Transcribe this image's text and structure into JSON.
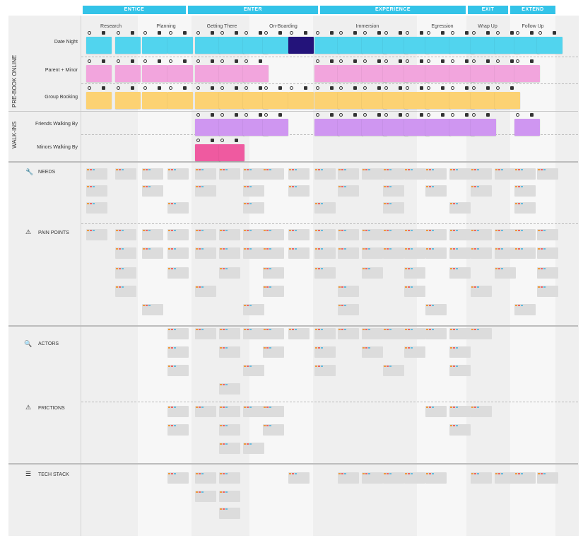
{
  "phases": [
    {
      "label": "ENTICE"
    },
    {
      "label": "ENTER"
    },
    {
      "label": "EXPERIENCE"
    },
    {
      "label": "EXIT"
    },
    {
      "label": "EXTEND"
    }
  ],
  "stages": [
    "Research",
    "Planning",
    "Getting There",
    "On-Boarding",
    "Immersion",
    "Egression",
    "Wrap Up",
    "Follow Up"
  ],
  "groups": {
    "pre_book": "PRE-BOOK ONLINE",
    "walk_ins": "WALK-INS"
  },
  "personas": [
    "Date Night",
    "Parent + Minor",
    "Group Booking",
    "Friends Walking By",
    "Minors Walking By"
  ],
  "sections": [
    {
      "label": "NEEDS",
      "icon": "wrench-icon",
      "glyph": "🔧"
    },
    {
      "label": "PAIN POINTS",
      "icon": "warning-icon",
      "glyph": "⚠"
    },
    {
      "label": "ACTORS",
      "icon": "magnifier-icon",
      "glyph": "🔍"
    },
    {
      "label": "FRICTIONS",
      "icon": "warning-icon",
      "glyph": "⚠"
    },
    {
      "label": "TECH STACK",
      "icon": "layers-icon",
      "glyph": "☰"
    }
  ],
  "colors": {
    "phase_bar": "#33c3e8",
    "cyan": "#51d4ee",
    "pink": "#f2a5dd",
    "orange": "#fcd273",
    "purple": "#cf96f1",
    "magenta": "#ef5aa0",
    "navy": "#23137a"
  }
}
